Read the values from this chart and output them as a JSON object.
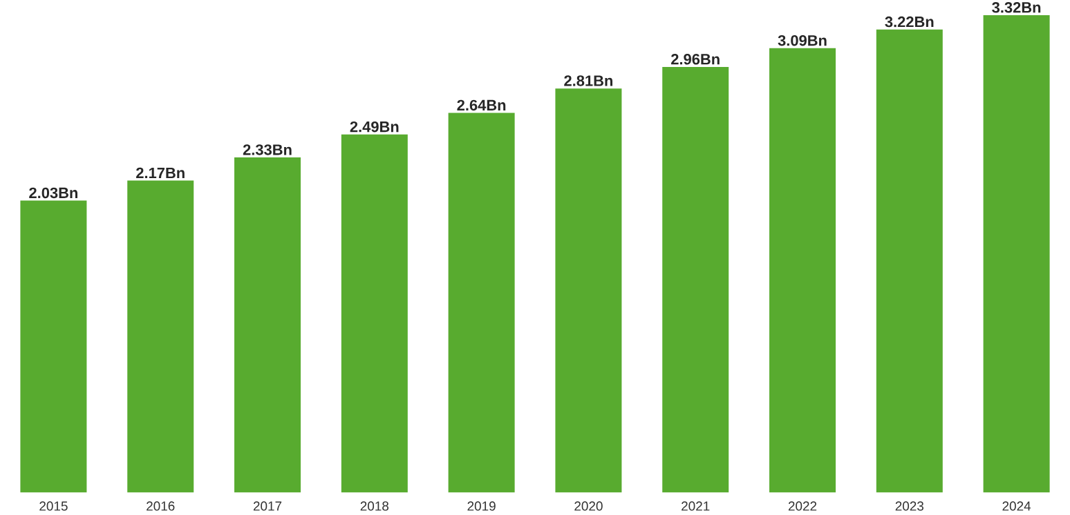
{
  "chart_data": {
    "type": "bar",
    "categories": [
      "2015",
      "2016",
      "2017",
      "2018",
      "2019",
      "2020",
      "2021",
      "2022",
      "2023",
      "2024"
    ],
    "values": [
      2.03,
      2.17,
      2.33,
      2.49,
      2.64,
      2.81,
      2.96,
      3.09,
      3.22,
      3.32
    ],
    "value_labels": [
      "2.03Bn",
      "2.17Bn",
      "2.33Bn",
      "2.49Bn",
      "2.64Bn",
      "2.81Bn",
      "2.96Bn",
      "3.09Bn",
      "3.22Bn",
      "3.32Bn"
    ],
    "color": "#58ab2f"
  }
}
